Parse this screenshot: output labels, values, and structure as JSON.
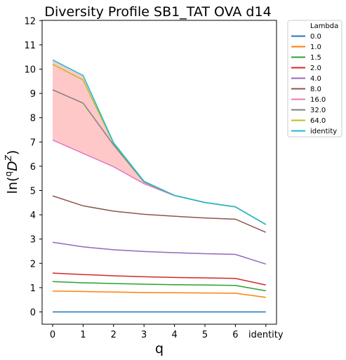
{
  "chart_data": {
    "type": "line",
    "title": "Diversity Profile SB1_TAT OVA d14",
    "xlabel": "q",
    "ylabel": "ln(qDZ)",
    "ylabel_parts": {
      "base": "ln(",
      "sup": "q",
      "D": "D",
      "supZ": "Z",
      "close": ")"
    },
    "categories": [
      "0",
      "1",
      "2",
      "3",
      "4",
      "5",
      "6",
      "identity"
    ],
    "ylim": [
      -0.5,
      12
    ],
    "yticks": [
      0,
      1,
      2,
      3,
      4,
      5,
      6,
      7,
      8,
      9,
      10,
      11,
      12
    ],
    "legend": {
      "title": "Lambda",
      "placement": "outside-top-right"
    },
    "fill_between": {
      "lower_series": "16.0",
      "upper_series": "identity",
      "color": "#ffc8c8"
    },
    "series": [
      {
        "name": "0.0",
        "color": "#1f77b4",
        "values": [
          0,
          0,
          0,
          0,
          0,
          0,
          0,
          0
        ]
      },
      {
        "name": "1.0",
        "color": "#ff7f0e",
        "values": [
          0.86,
          0.84,
          0.82,
          0.8,
          0.79,
          0.78,
          0.77,
          0.6
        ]
      },
      {
        "name": "1.5",
        "color": "#2ca02c",
        "values": [
          1.25,
          1.2,
          1.17,
          1.14,
          1.12,
          1.11,
          1.09,
          0.87
        ]
      },
      {
        "name": "2.0",
        "color": "#d62728",
        "values": [
          1.6,
          1.54,
          1.49,
          1.45,
          1.42,
          1.4,
          1.38,
          1.11
        ]
      },
      {
        "name": "4.0",
        "color": "#9467bd",
        "values": [
          2.87,
          2.68,
          2.56,
          2.49,
          2.44,
          2.4,
          2.37,
          1.97
        ]
      },
      {
        "name": "8.0",
        "color": "#8c564b",
        "values": [
          4.78,
          4.37,
          4.15,
          4.02,
          3.94,
          3.87,
          3.82,
          3.28
        ]
      },
      {
        "name": "16.0",
        "color": "#e377c2",
        "values": [
          7.08,
          6.53,
          5.98,
          5.28,
          4.79,
          4.5,
          4.32,
          3.6
        ]
      },
      {
        "name": "32.0",
        "color": "#7f7f7f",
        "values": [
          9.15,
          8.6,
          6.88,
          5.35,
          4.8,
          4.51,
          4.33,
          3.6
        ]
      },
      {
        "name": "64.0",
        "color": "#bcbd22",
        "values": [
          10.2,
          9.55,
          6.95,
          5.37,
          4.8,
          4.51,
          4.33,
          3.6
        ]
      },
      {
        "name": "identity",
        "color": "#17becf",
        "values": [
          10.38,
          9.74,
          6.97,
          5.38,
          4.8,
          4.51,
          4.33,
          3.6
        ]
      }
    ]
  }
}
